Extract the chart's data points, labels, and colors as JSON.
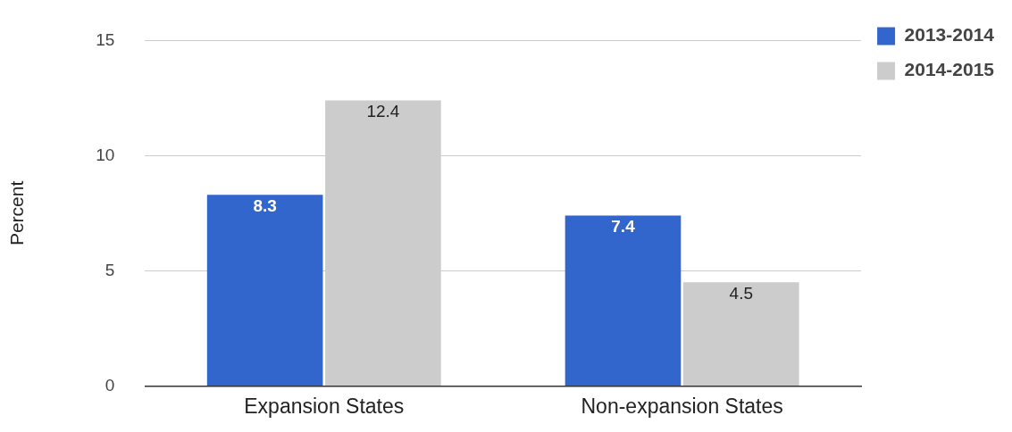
{
  "chart_data": {
    "type": "bar",
    "ylabel": "Percent",
    "categories": [
      "Expansion States",
      "Non-expansion States"
    ],
    "series": [
      {
        "name": "2013-2014",
        "color": "#3366cc",
        "values": [
          8.3,
          7.4
        ]
      },
      {
        "name": "2014-2015",
        "color": "#cccccc",
        "values": [
          12.4,
          4.5
        ]
      }
    ],
    "ylim": [
      0,
      15
    ],
    "yticks": [
      0,
      5,
      10,
      15
    ],
    "grid": "y",
    "legend": "right",
    "data_labels": true
  }
}
